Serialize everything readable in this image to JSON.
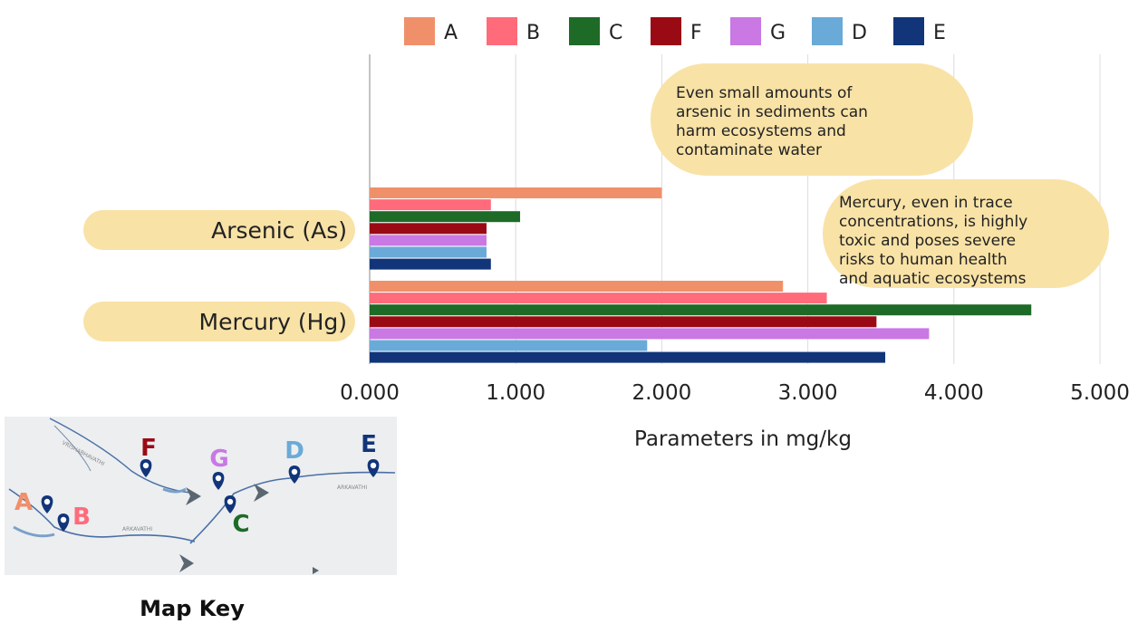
{
  "chart_data": {
    "type": "bar",
    "orientation": "horizontal",
    "categories": [
      "Arsenic (As)",
      "Mercury (Hg)"
    ],
    "series": [
      {
        "name": "A",
        "color": "#F0906A",
        "values": [
          2.0,
          2.83
        ]
      },
      {
        "name": "B",
        "color": "#FF6B7A",
        "values": [
          0.83,
          3.13
        ]
      },
      {
        "name": "C",
        "color": "#1E6B28",
        "values": [
          1.03,
          4.53
        ]
      },
      {
        "name": "F",
        "color": "#9A0A14",
        "values": [
          0.8,
          3.47
        ]
      },
      {
        "name": "G",
        "color": "#C978E4",
        "values": [
          0.8,
          3.83
        ]
      },
      {
        "name": "D",
        "color": "#6AAAD8",
        "values": [
          0.8,
          1.9
        ]
      },
      {
        "name": "E",
        "color": "#12357A",
        "values": [
          0.83,
          3.53
        ]
      }
    ],
    "legend_order": [
      "A",
      "B",
      "C",
      "F",
      "G",
      "D",
      "E"
    ],
    "xlabel": "Parameters in mg/kg",
    "xlim": [
      0,
      5
    ],
    "xticks": [
      "0.000",
      "1.000",
      "2.000",
      "3.000",
      "4.000",
      "5.000"
    ],
    "grid": true,
    "legend_position": "top",
    "annotations": [
      {
        "lines": [
          "Even small amounts of",
          "arsenic in sediments can",
          "harm ecosystems and",
          "contaminate water"
        ]
      },
      {
        "lines": [
          "Mercury, even in trace",
          "concentrations, is highly",
          "toxic and poses severe",
          "risks to human health",
          "and aquatic ecosystems"
        ]
      }
    ]
  },
  "map_key": {
    "title": "Map Key",
    "points": [
      {
        "label": "A",
        "color": "#F0906A"
      },
      {
        "label": "B",
        "color": "#FF6B7A"
      },
      {
        "label": "C",
        "color": "#1E6B28"
      },
      {
        "label": "F",
        "color": "#9A0A14"
      },
      {
        "label": "G",
        "color": "#C978E4"
      },
      {
        "label": "D",
        "color": "#6AAAD8"
      },
      {
        "label": "E",
        "color": "#12357A"
      }
    ],
    "river_labels": [
      "ARKAVATHI",
      "ARKAVATHI",
      "VRISHABHAVATHI"
    ]
  }
}
